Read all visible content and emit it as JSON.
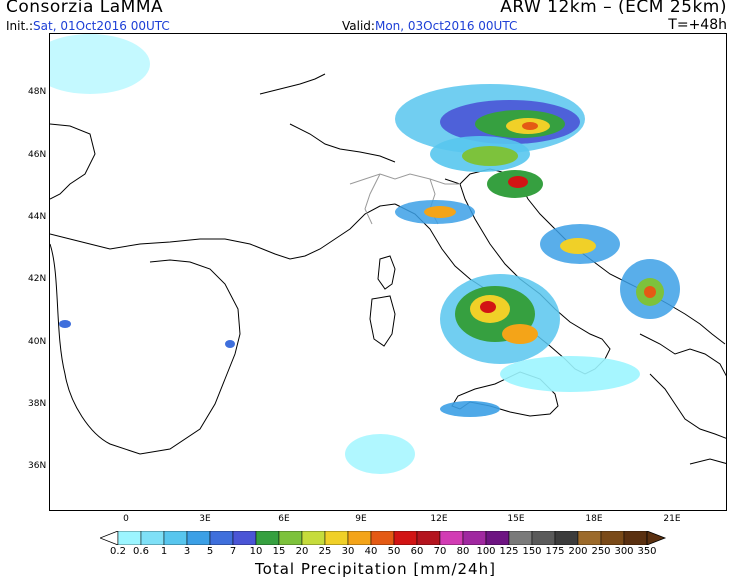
{
  "header": {
    "organization": "Consorzia LaMMA",
    "model": "ARW 12km – (ECM 25km)",
    "init_label": "Init.:",
    "init_value": "Sat, 01Oct2016 00UTC",
    "valid_label": "Valid:",
    "valid_value": "Mon, 03Oct2016 00UTC",
    "lead_time": "T=+48h"
  },
  "map": {
    "lat_labels": [
      "48N",
      "46N",
      "44N",
      "42N",
      "40N",
      "38N",
      "36N"
    ],
    "lon_labels": [
      "0",
      "3E",
      "6E",
      "9E",
      "12E",
      "15E",
      "18E",
      "21E"
    ]
  },
  "colorbar": {
    "title": "Total Precipitation [mm/24h]",
    "levels": [
      "0.2",
      "0.6",
      "1",
      "3",
      "5",
      "7",
      "10",
      "15",
      "20",
      "25",
      "30",
      "40",
      "50",
      "60",
      "70",
      "80",
      "100",
      "125",
      "150",
      "175",
      "200",
      "250",
      "300",
      "350"
    ],
    "colors": [
      "#9cf5ff",
      "#7fe0f7",
      "#58c6ee",
      "#3ca0e6",
      "#3f6fdc",
      "#4a55d6",
      "#36a040",
      "#7dc23c",
      "#c6dc3c",
      "#f0d028",
      "#f4a418",
      "#e45a14",
      "#d21414",
      "#b4141e",
      "#d23cb4",
      "#a028a0",
      "#6e1482",
      "#7a7a7a",
      "#5a5a5a",
      "#3c3c3c",
      "#9c6a2a",
      "#7a4a18",
      "#5a3010"
    ]
  }
}
